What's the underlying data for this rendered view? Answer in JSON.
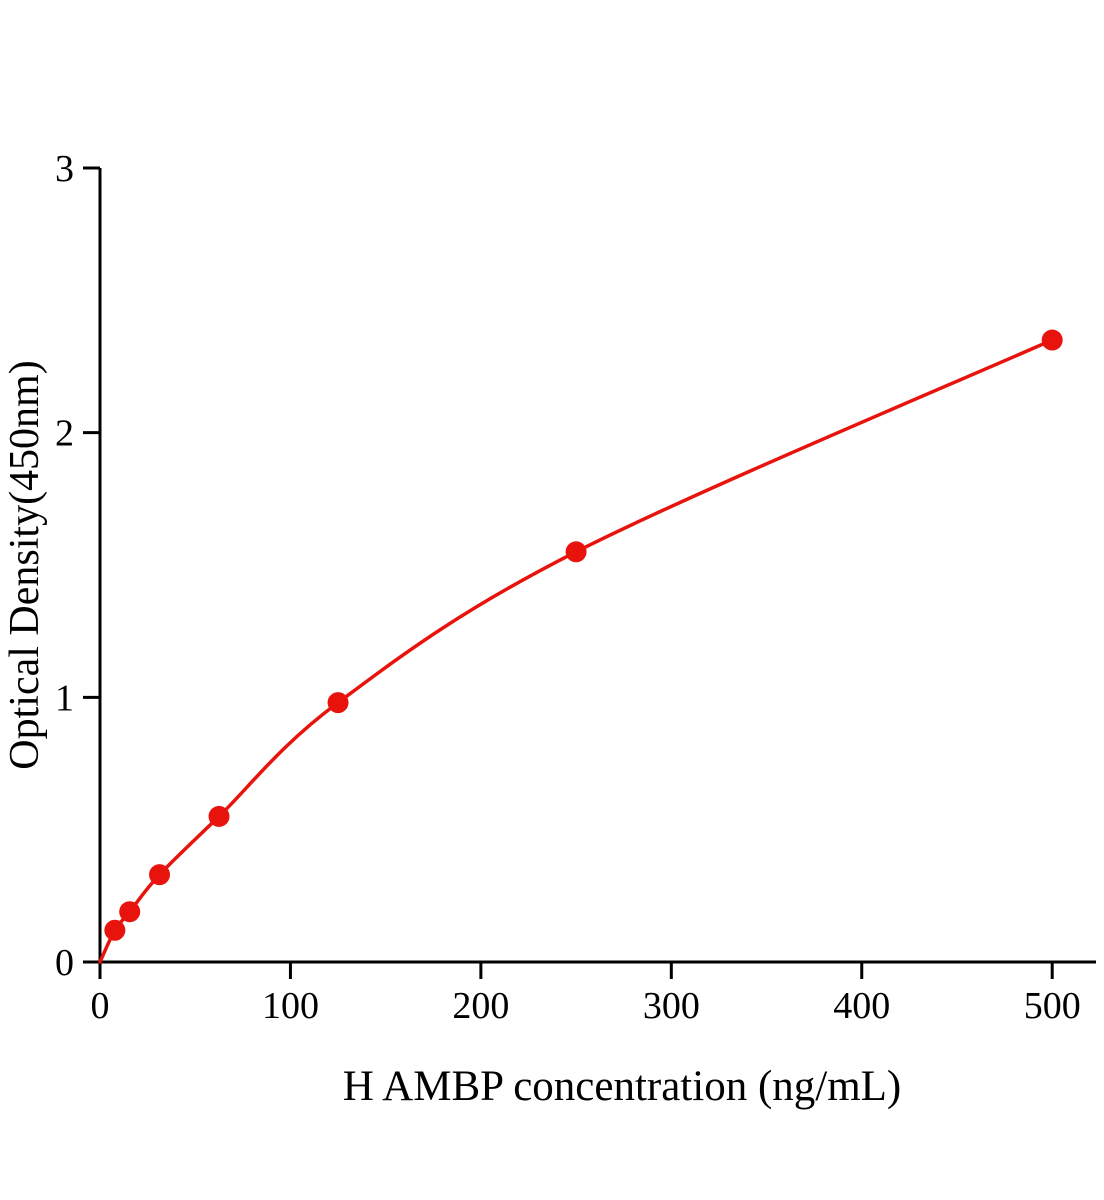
{
  "chart_data": {
    "type": "scatter",
    "title": "",
    "xlabel": "H AMBP concentration (ng/mL)",
    "ylabel": "Optical Density(450nm)",
    "x": [
      7.8,
      15.6,
      31.25,
      62.5,
      125,
      250,
      500
    ],
    "y": [
      0.12,
      0.19,
      0.33,
      0.55,
      0.98,
      1.55,
      2.35
    ],
    "curve_includes_origin": true,
    "xlim": [
      0,
      523
    ],
    "ylim": [
      0,
      3
    ],
    "xticks": [
      0,
      100,
      200,
      300,
      400,
      500
    ],
    "yticks": [
      0,
      1,
      2,
      3
    ],
    "grid": false,
    "legend_position": "none",
    "series_color": "#e8130c",
    "axis_color": "#000000",
    "marker": "circle"
  }
}
